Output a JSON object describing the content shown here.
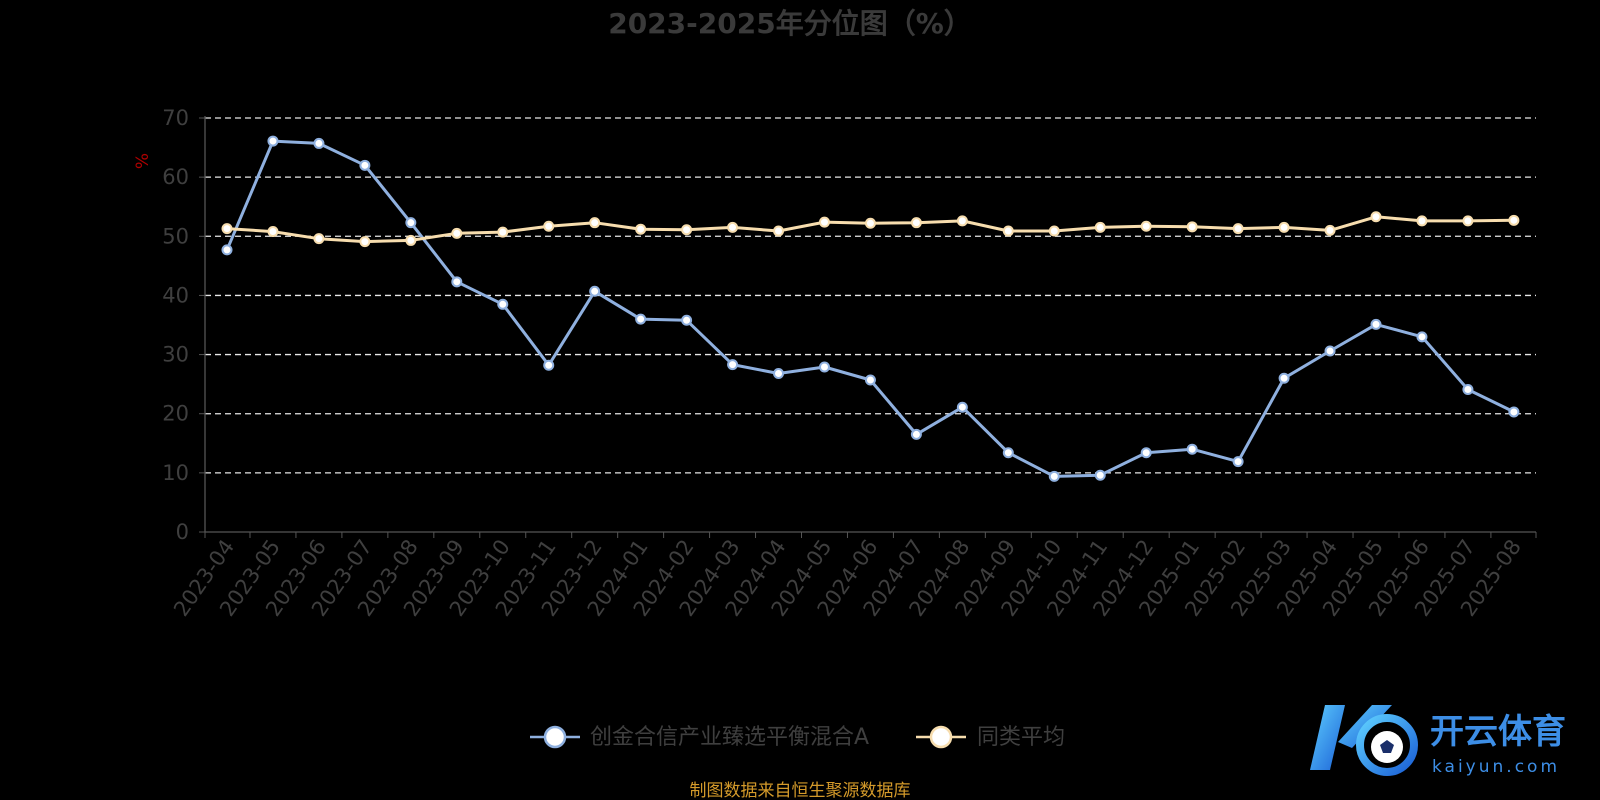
{
  "chart_data": {
    "type": "line",
    "title": "2023-2025年分位图（%）",
    "ylabel": "%",
    "xlabel": "",
    "ylim": [
      0,
      70
    ],
    "yticks": [
      0,
      10,
      20,
      30,
      40,
      50,
      60,
      70
    ],
    "grid": true,
    "legend_position": "bottom-center",
    "categories": [
      "2023-04",
      "2023-05",
      "2023-06",
      "2023-07",
      "2023-08",
      "2023-09",
      "2023-10",
      "2023-11",
      "2023-12",
      "2024-01",
      "2024-02",
      "2024-03",
      "2024-04",
      "2024-05",
      "2024-06",
      "2024-07",
      "2024-08",
      "2024-09",
      "2024-10",
      "2024-11",
      "2024-12",
      "2025-01",
      "2025-02",
      "2025-03",
      "2025-04",
      "2025-05",
      "2025-06",
      "2025-07",
      "2025-08"
    ],
    "series": [
      {
        "name": "创金合信产业臻选平衡混合A",
        "color": "#8fb0df",
        "values": [
          47.7,
          66.1,
          65.7,
          62.0,
          52.3,
          42.3,
          38.5,
          28.2,
          40.7,
          36.0,
          35.8,
          28.3,
          26.8,
          27.9,
          25.7,
          16.5,
          21.1,
          13.4,
          9.4,
          9.6,
          13.4,
          14.0,
          11.9,
          26.0,
          30.6,
          35.1,
          33.0,
          24.1,
          20.3
        ]
      },
      {
        "name": "同类平均",
        "color": "#f7ddae",
        "values": [
          51.3,
          50.8,
          49.6,
          49.1,
          49.3,
          50.5,
          50.7,
          51.7,
          52.3,
          51.2,
          51.1,
          51.5,
          50.9,
          52.4,
          52.2,
          52.3,
          52.6,
          50.9,
          50.9,
          51.5,
          51.7,
          51.6,
          51.3,
          51.5,
          51.0,
          53.3,
          52.6,
          52.6,
          52.7
        ]
      }
    ]
  },
  "source_note": "制图数据来自恒生聚源数据库",
  "watermark": {
    "brand_name": "开云体育",
    "brand_url": "kaiyun.com"
  }
}
